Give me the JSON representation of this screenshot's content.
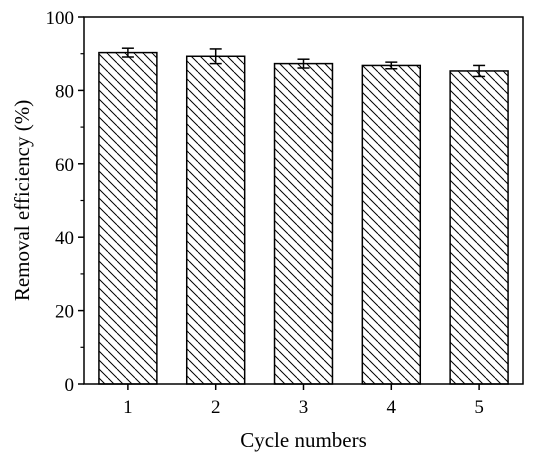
{
  "chart_data": {
    "type": "bar",
    "title": "",
    "xlabel": "Cycle numbers",
    "ylabel": "Removal efficiency (%)",
    "categories": [
      "1",
      "2",
      "3",
      "4",
      "5"
    ],
    "values": [
      90.3,
      89.3,
      87.3,
      86.8,
      85.3
    ],
    "errors": [
      1.2,
      2.0,
      1.2,
      0.9,
      1.5
    ],
    "ylim": [
      0,
      100
    ],
    "yticks": [
      0,
      20,
      40,
      60,
      80,
      100
    ],
    "grid": false,
    "legend": "none",
    "bar_fill": "diagonal-hatch",
    "colors": {
      "bar_stroke": "#000000",
      "hatch": "#000000",
      "axis": "#000000"
    }
  }
}
